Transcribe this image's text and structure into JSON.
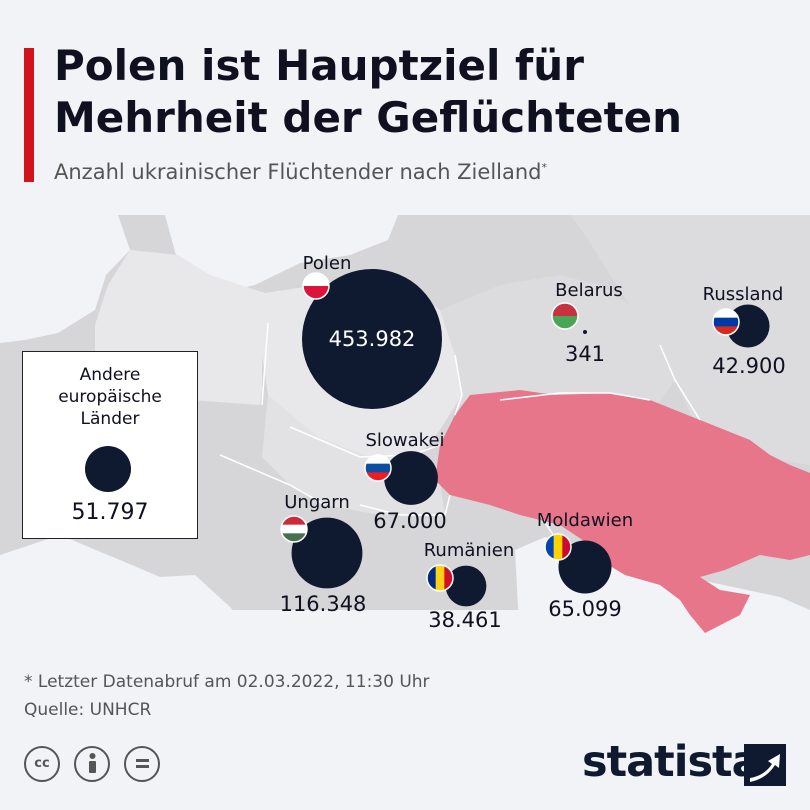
{
  "header": {
    "title_line1": "Polen ist Hauptziel für",
    "title_line2": "Mehrheit der Geflüchteten",
    "subtitle": "Anzahl ukrainischer Flüchtender nach Zielland",
    "subtitle_mark": "*"
  },
  "colors": {
    "accent": "#d1131d",
    "bubble": "#0f1a30",
    "ukraine": "#e8768a",
    "land": "#d6d6d8",
    "background": "#f2f3f7"
  },
  "countries": [
    {
      "id": "polen",
      "name": "Polen",
      "value": 453982,
      "value_label": "453.982",
      "flag": "flag-poland-icon"
    },
    {
      "id": "belarus",
      "name": "Belarus",
      "value": 341,
      "value_label": "341",
      "flag": "flag-belarus-icon"
    },
    {
      "id": "russland",
      "name": "Russland",
      "value": 42900,
      "value_label": "42.900",
      "flag": "flag-russia-icon"
    },
    {
      "id": "slowakei",
      "name": "Slowakei",
      "value": 67000,
      "value_label": "67.000",
      "flag": "flag-slovakia-icon"
    },
    {
      "id": "ungarn",
      "name": "Ungarn",
      "value": 116348,
      "value_label": "116.348",
      "flag": "flag-hungary-icon"
    },
    {
      "id": "rumaenien",
      "name": "Rumänien",
      "value": 38461,
      "value_label": "38.461",
      "flag": "flag-romania-icon"
    },
    {
      "id": "moldawien",
      "name": "Moldawien",
      "value": 65099,
      "value_label": "65.099",
      "flag": "flag-moldova-icon"
    }
  ],
  "legend": {
    "line1": "Andere",
    "line2": "europäische",
    "line3": "Länder",
    "value": 51797,
    "value_label": "51.797"
  },
  "footer": {
    "note": "* Letzter Datenabruf am 02.03.2022, 11:30 Uhr",
    "source": "Quelle: UNHCR",
    "license_icons": [
      "cc-icon",
      "attribution-icon",
      "no-derivatives-icon"
    ],
    "brand": "statista"
  }
}
